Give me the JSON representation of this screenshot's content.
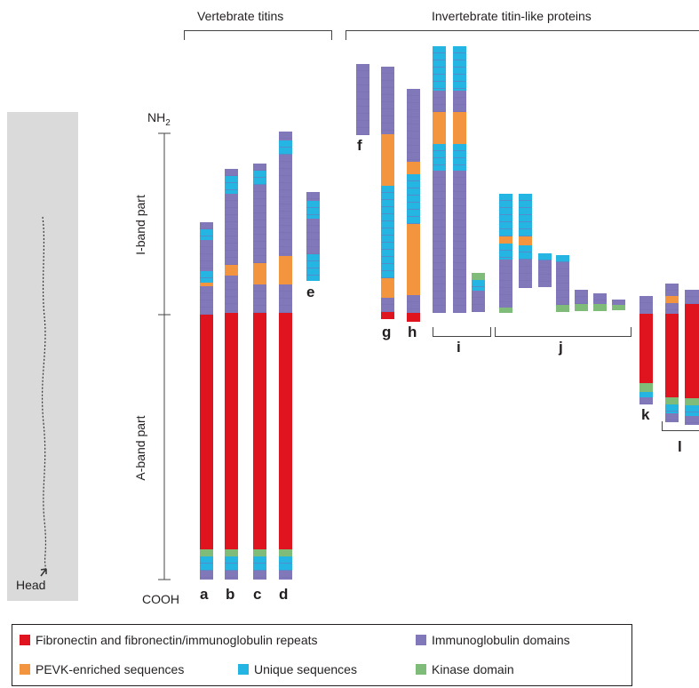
{
  "headings": {
    "vertebrate": "Vertebrate titins",
    "invertebrate": "Invertebrate titin-like proteins"
  },
  "axis": {
    "nh2_main": "NH",
    "nh2_sub": "2",
    "cooh": "COOH",
    "i_band": "I-band part",
    "a_band": "A-band part"
  },
  "micrograph": {
    "head_label": "Head"
  },
  "letters": [
    "a",
    "b",
    "c",
    "d",
    "e",
    "f",
    "g",
    "h",
    "i",
    "j",
    "k",
    "l"
  ],
  "legend": {
    "fn": "Fibronectin and fibronectin/immunoglobulin repeats",
    "ig": "Immunoglobulin domains",
    "pevk": "PEVK-enriched sequences",
    "unique": "Unique sequences",
    "kinase": "Kinase domain"
  },
  "colors": {
    "fn": "#e0141e",
    "ig": "#8078b8",
    "pevk": "#f3953f",
    "unique": "#25b5e3",
    "kinase": "#7fbc7a"
  }
}
